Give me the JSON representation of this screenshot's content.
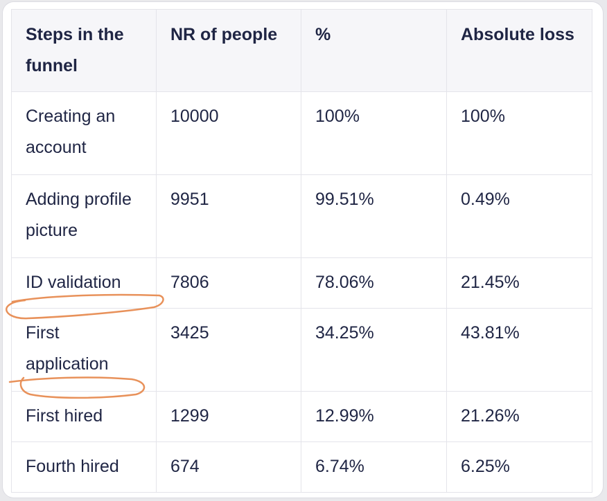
{
  "table": {
    "headers": [
      "Steps in the funnel",
      "NR of people",
      "%",
      "Absolute loss"
    ],
    "rows": [
      [
        "Creating an account",
        "10000",
        "100%",
        "100%"
      ],
      [
        "Adding profile picture",
        "9951",
        "99.51%",
        "0.49%"
      ],
      [
        "ID validation",
        "7806",
        "78.06%",
        "21.45%"
      ],
      [
        "First application",
        "3425",
        "34.25%",
        "43.81%"
      ],
      [
        "First hired",
        "1299",
        "12.99%",
        "21.26%"
      ],
      [
        "Fourth hired",
        "674",
        "6.74%",
        "6.25%"
      ]
    ]
  },
  "annotations": {
    "ink_color": "#e8915a",
    "marks": [
      "underline-id-validation",
      "underline-first-application"
    ]
  }
}
